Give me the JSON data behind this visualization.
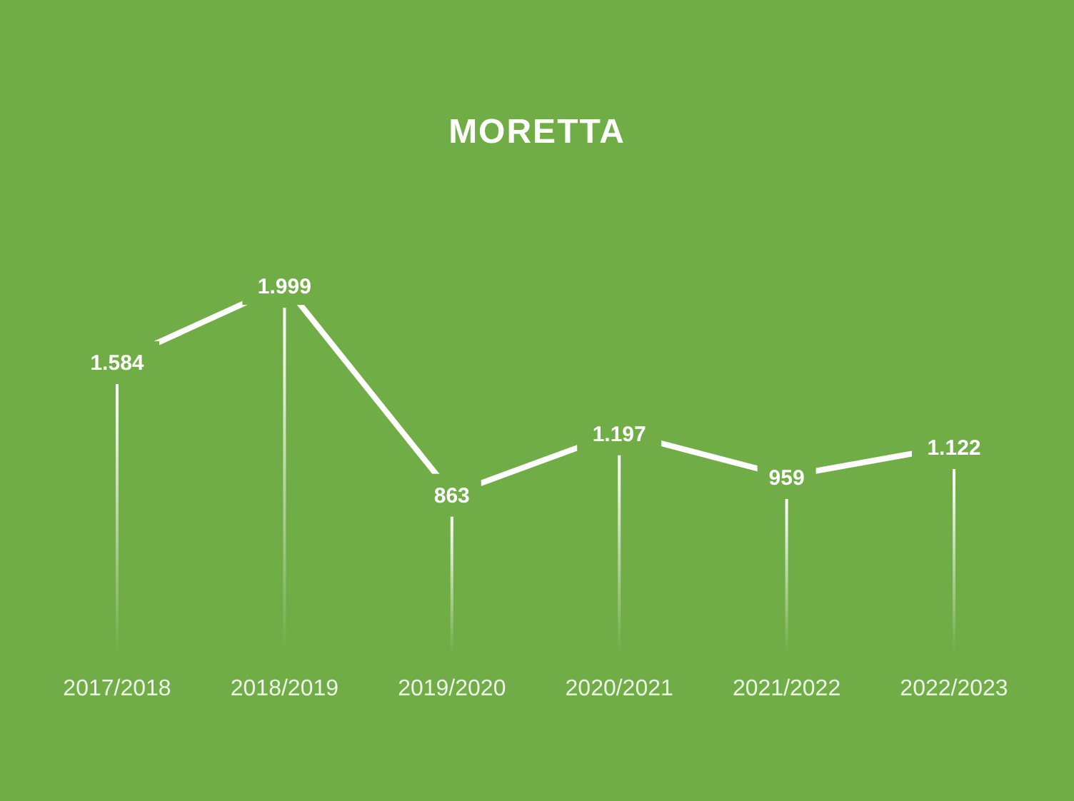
{
  "chart_data": {
    "type": "line",
    "title": "MORETTA",
    "categories": [
      "2017/2018",
      "2018/2019",
      "2019/2020",
      "2020/2021",
      "2021/2022",
      "2022/2023"
    ],
    "values": [
      1584,
      1999,
      863,
      1197,
      959,
      1122
    ],
    "value_labels": [
      "1.584",
      "1.999",
      "863",
      "1.197",
      "959",
      "1.122"
    ],
    "color": "#ffffff",
    "line_style": "solid",
    "grid": "x",
    "legend": false
  }
}
